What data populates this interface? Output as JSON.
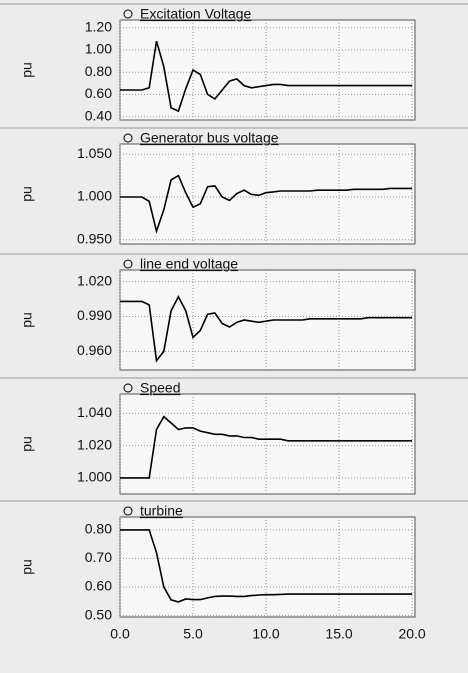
{
  "chart_data": [
    {
      "type": "line",
      "title": "Excitation Voltage",
      "ylabel": "pu",
      "color": "#000000",
      "grid": true,
      "x": [
        0,
        0.5,
        1,
        1.5,
        2,
        2.5,
        3,
        3.5,
        4,
        4.5,
        5,
        5.5,
        6,
        6.5,
        7,
        7.5,
        8,
        8.5,
        9,
        9.5,
        10,
        10.5,
        11,
        11.5,
        12,
        12.5,
        13,
        13.5,
        14,
        14.5,
        15,
        15.5,
        16,
        16.5,
        17,
        17.5,
        18,
        18.5,
        19,
        19.5,
        20
      ],
      "values": [
        0.64,
        0.64,
        0.64,
        0.64,
        0.66,
        1.08,
        0.85,
        0.48,
        0.45,
        0.65,
        0.82,
        0.78,
        0.6,
        0.56,
        0.64,
        0.72,
        0.74,
        0.68,
        0.66,
        0.67,
        0.68,
        0.69,
        0.69,
        0.68,
        0.68,
        0.68,
        0.68,
        0.68,
        0.68,
        0.68,
        0.68,
        0.68,
        0.68,
        0.68,
        0.68,
        0.68,
        0.68,
        0.68,
        0.68,
        0.68,
        0.68
      ],
      "xlim": [
        0,
        20.2
      ],
      "xticks": [
        0,
        5,
        10,
        15,
        20
      ],
      "ylim": [
        0.37,
        1.27
      ],
      "yticks": [
        {
          "value": 0.4,
          "label": "0.40"
        },
        {
          "value": 0.6,
          "label": "0.60"
        },
        {
          "value": 0.8,
          "label": "0.80"
        },
        {
          "value": 1.0,
          "label": "1.00"
        },
        {
          "value": 1.2,
          "label": "1.20"
        }
      ]
    },
    {
      "type": "line",
      "title": "Generator bus voltage",
      "ylabel": "pu",
      "color": "#000000",
      "grid": true,
      "x": [
        0,
        0.5,
        1,
        1.5,
        2,
        2.5,
        3,
        3.5,
        4,
        4.5,
        5,
        5.5,
        6,
        6.5,
        7,
        7.5,
        8,
        8.5,
        9,
        9.5,
        10,
        10.5,
        11,
        11.5,
        12,
        12.5,
        13,
        13.5,
        14,
        14.5,
        15,
        15.5,
        16,
        16.5,
        17,
        17.5,
        18,
        18.5,
        19,
        19.5,
        20
      ],
      "values": [
        1.0,
        1.0,
        1.0,
        1.0,
        0.995,
        0.96,
        0.985,
        1.02,
        1.025,
        1.005,
        0.988,
        0.992,
        1.012,
        1.013,
        1.0,
        0.996,
        1.004,
        1.008,
        1.003,
        1.002,
        1.005,
        1.006,
        1.007,
        1.007,
        1.007,
        1.007,
        1.007,
        1.008,
        1.008,
        1.008,
        1.008,
        1.008,
        1.009,
        1.009,
        1.009,
        1.009,
        1.009,
        1.01,
        1.01,
        1.01,
        1.01
      ],
      "xlim": [
        0,
        20.2
      ],
      "xticks": [
        0,
        5,
        10,
        15,
        20
      ],
      "ylim": [
        0.945,
        1.062
      ],
      "yticks": [
        {
          "value": 0.95,
          "label": "0.950"
        },
        {
          "value": 1.0,
          "label": "1.000"
        },
        {
          "value": 1.05,
          "label": "1.050"
        }
      ]
    },
    {
      "type": "line",
      "title": "line end voltage",
      "ylabel": "pu",
      "color": "#000000",
      "grid": true,
      "x": [
        0,
        0.5,
        1,
        1.5,
        2,
        2.5,
        3,
        3.5,
        4,
        4.5,
        5,
        5.5,
        6,
        6.5,
        7,
        7.5,
        8,
        8.5,
        9,
        9.5,
        10,
        10.5,
        11,
        11.5,
        12,
        12.5,
        13,
        13.5,
        14,
        14.5,
        15,
        15.5,
        16,
        16.5,
        17,
        17.5,
        18,
        18.5,
        19,
        19.5,
        20
      ],
      "values": [
        1.003,
        1.003,
        1.003,
        1.003,
        1.0,
        0.952,
        0.96,
        0.995,
        1.007,
        0.995,
        0.972,
        0.978,
        0.992,
        0.993,
        0.984,
        0.981,
        0.985,
        0.987,
        0.986,
        0.985,
        0.986,
        0.987,
        0.987,
        0.987,
        0.987,
        0.987,
        0.988,
        0.988,
        0.988,
        0.988,
        0.988,
        0.988,
        0.988,
        0.988,
        0.989,
        0.989,
        0.989,
        0.989,
        0.989,
        0.989,
        0.989
      ],
      "xlim": [
        0,
        20.2
      ],
      "xticks": [
        0,
        5,
        10,
        15,
        20
      ],
      "ylim": [
        0.944,
        1.03
      ],
      "yticks": [
        {
          "value": 0.96,
          "label": "0.960"
        },
        {
          "value": 0.99,
          "label": "0.990"
        },
        {
          "value": 1.02,
          "label": "1.020"
        }
      ]
    },
    {
      "type": "line",
      "title": "Speed",
      "ylabel": "pu",
      "color": "#000000",
      "grid": true,
      "x": [
        0,
        0.5,
        1,
        1.5,
        2,
        2.5,
        3,
        3.5,
        4,
        4.5,
        5,
        5.5,
        6,
        6.5,
        7,
        7.5,
        8,
        8.5,
        9,
        9.5,
        10,
        10.5,
        11,
        11.5,
        12,
        12.5,
        13,
        13.5,
        14,
        14.5,
        15,
        15.5,
        16,
        16.5,
        17,
        17.5,
        18,
        18.5,
        19,
        19.5,
        20
      ],
      "values": [
        1.0,
        1.0,
        1.0,
        1.0,
        1.0,
        1.03,
        1.038,
        1.034,
        1.03,
        1.031,
        1.031,
        1.029,
        1.028,
        1.027,
        1.027,
        1.026,
        1.026,
        1.025,
        1.025,
        1.024,
        1.024,
        1.024,
        1.024,
        1.023,
        1.023,
        1.023,
        1.023,
        1.023,
        1.023,
        1.023,
        1.023,
        1.023,
        1.023,
        1.023,
        1.023,
        1.023,
        1.023,
        1.023,
        1.023,
        1.023,
        1.023
      ],
      "xlim": [
        0,
        20.2
      ],
      "xticks": [
        0,
        5,
        10,
        15,
        20
      ],
      "ylim": [
        0.99,
        1.052
      ],
      "yticks": [
        {
          "value": 1.0,
          "label": "1.000"
        },
        {
          "value": 1.02,
          "label": "1.020"
        },
        {
          "value": 1.04,
          "label": "1.040"
        }
      ]
    },
    {
      "type": "line",
      "title": "turbine",
      "ylabel": "pu",
      "color": "#000000",
      "grid": true,
      "x": [
        0,
        0.5,
        1,
        1.5,
        2,
        2.5,
        3,
        3.5,
        4,
        4.5,
        5,
        5.5,
        6,
        6.5,
        7,
        7.5,
        8,
        8.5,
        9,
        9.5,
        10,
        10.5,
        11,
        11.5,
        12,
        12.5,
        13,
        13.5,
        14,
        14.5,
        15,
        15.5,
        16,
        16.5,
        17,
        17.5,
        18,
        18.5,
        19,
        19.5,
        20
      ],
      "values": [
        0.8,
        0.8,
        0.8,
        0.8,
        0.8,
        0.72,
        0.6,
        0.555,
        0.548,
        0.558,
        0.556,
        0.556,
        0.562,
        0.567,
        0.568,
        0.568,
        0.567,
        0.567,
        0.57,
        0.572,
        0.573,
        0.573,
        0.574,
        0.575,
        0.575,
        0.575,
        0.575,
        0.575,
        0.575,
        0.575,
        0.575,
        0.575,
        0.575,
        0.575,
        0.575,
        0.575,
        0.575,
        0.575,
        0.575,
        0.575,
        0.575
      ],
      "xlim": [
        0,
        20.2
      ],
      "xticks": [
        {
          "value": 0,
          "label": "0.0"
        },
        {
          "value": 5,
          "label": "5.0"
        },
        {
          "value": 10,
          "label": "10.0"
        },
        {
          "value": 15,
          "label": "15.0"
        },
        {
          "value": 20,
          "label": "20.0"
        }
      ],
      "ylim": [
        0.495,
        0.845
      ],
      "yticks": [
        {
          "value": 0.5,
          "label": "0.50"
        },
        {
          "value": 0.6,
          "label": "0.60"
        },
        {
          "value": 0.7,
          "label": "0.70"
        },
        {
          "value": 0.8,
          "label": "0.80"
        }
      ]
    }
  ]
}
